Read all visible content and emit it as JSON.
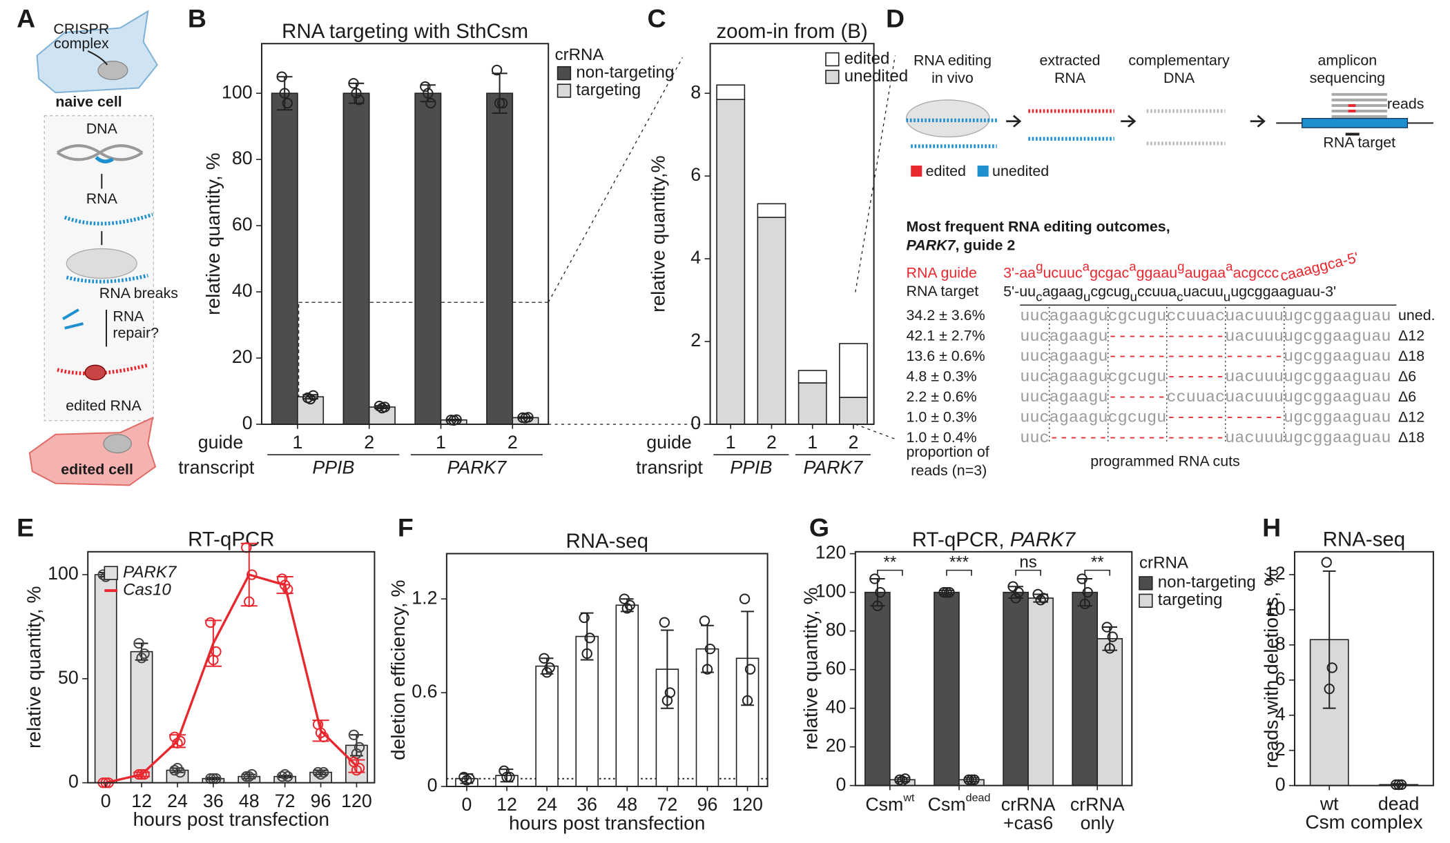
{
  "panel_a": {
    "label": "A",
    "crispr": [
      "CRISPR",
      "complex"
    ],
    "naive": "naive cell",
    "dna": "DNA",
    "rna": "RNA",
    "breaks": "RNA breaks",
    "repair": [
      "RNA",
      "repair?"
    ],
    "edited_rna": "edited RNA",
    "edited_cell": "edited cell"
  },
  "panel_d": {
    "label": "D",
    "steps": [
      [
        "RNA editing",
        "in vivo"
      ],
      [
        "extracted",
        "RNA"
      ],
      [
        "complementary",
        "DNA"
      ],
      [
        "amplicon",
        "sequencing"
      ]
    ],
    "reads_label": "reads",
    "target_label": "RNA target",
    "legend": [
      {
        "name": "edited",
        "color": "#e8272e"
      },
      {
        "name": "unedited",
        "color": "#1e90d0"
      }
    ],
    "heading": [
      "Most frequent RNA editing outcomes,",
      "PARK7",
      ", guide 2"
    ],
    "guide_label": "RNA guide",
    "guide": [
      "3'-aa",
      "g",
      "ucuuc",
      "a",
      "gcgac",
      "a",
      "ggaau",
      "g",
      "augaa",
      "a",
      "acgccc",
      "caaaggca-5'"
    ],
    "target_row_label": "RNA target",
    "target": [
      "5'-uu",
      "c",
      "agaag",
      "u",
      "cgcug",
      "u",
      "ccuua",
      "c",
      "uacuu",
      "u",
      "ugcggaaguau-3'"
    ],
    "rows": [
      {
        "proportion": "34.2 ± 3.6%",
        "sequence": [
          "uucagaagucgcuguccuuacuacuuuugcggaaguau"
        ],
        "outcome": "uned."
      },
      {
        "proportion": "42.1 ± 2.7%",
        "sequence": [
          "uucagaagu",
          "------------",
          "uacuuuugcggaaguau"
        ],
        "outcome": "Δ12"
      },
      {
        "proportion": "13.6 ± 0.6%",
        "sequence": [
          "uucagaagu",
          "------------------",
          "ugcggaaguau"
        ],
        "outcome": "Δ18"
      },
      {
        "proportion": "4.8 ± 0.3%",
        "sequence": [
          "uucagaagucgcugu",
          "------",
          "uacuuuugcggaaguau"
        ],
        "outcome": "Δ6"
      },
      {
        "proportion": "2.2 ± 0.6%",
        "sequence": [
          "uucagaagu",
          "------",
          "ccuuacuacuuuugcggaaguau"
        ],
        "outcome": "Δ6"
      },
      {
        "proportion": "1.0 ± 0.3%",
        "sequence": [
          "uucagaagucgcugu",
          "------------",
          "ugcggaaguau"
        ],
        "outcome": "Δ12"
      },
      {
        "proportion": "1.0 ± 0.4%",
        "sequence": [
          "uuc",
          "------------------",
          "uacuuuugcggaaguau"
        ],
        "outcome": "Δ18"
      }
    ],
    "proportion_label": [
      "proportion of",
      "reads (n=3)"
    ],
    "cuts_label": "programmed RNA cuts"
  },
  "chart_data": [
    {
      "type": "grouped_bar",
      "panel": "B",
      "title": "RNA targeting with SthCsm",
      "y_label": "relative quantity, %",
      "categories": [
        "1",
        "2",
        "1",
        "2"
      ],
      "category_row_label": "guide",
      "groups": [
        "PPIB",
        "PARK7"
      ],
      "group_row_label": "transcript",
      "legend_title": "crRNA",
      "series": [
        {
          "name": "non-targeting",
          "color": "#4d4d4d",
          "values": [
            100,
            100,
            100,
            100
          ],
          "errors": [
            5,
            3,
            2.5,
            6
          ],
          "points": [
            [
              105,
              97,
              100
            ],
            [
              103,
              98,
              100
            ],
            [
              102,
              97,
              100
            ],
            [
              107,
              97,
              97
            ]
          ]
        },
        {
          "name": "targeting",
          "color": "#d9d9d9",
          "values": [
            8.3,
            5.2,
            1.3,
            2.0
          ],
          "errors": [
            0.6,
            0.4,
            0.2,
            0.2
          ],
          "points": [
            [
              8,
              8.7,
              7.6
            ],
            [
              5.5,
              5.2,
              4.9
            ],
            [
              1.3,
              1.4,
              1.2
            ],
            [
              2,
              2.1,
              1.9
            ]
          ]
        }
      ],
      "ylim": [
        0,
        115
      ],
      "yticks": [
        0,
        20,
        40,
        60,
        80,
        100
      ]
    },
    {
      "type": "stacked_bar",
      "panel": "C",
      "title": "zoom-in from (B)",
      "y_label": "relative quantity,%",
      "categories": [
        "1",
        "2",
        "1",
        "2"
      ],
      "category_row_label": "guide",
      "groups": [
        "PPIB",
        "PARK7"
      ],
      "group_row_label": "transript",
      "series": [
        {
          "name": "unedited",
          "color": "#d9d9d9",
          "values": [
            7.85,
            5.0,
            1.0,
            0.65
          ]
        },
        {
          "name": "edited",
          "color": "#ffffff",
          "values": [
            0.35,
            0.33,
            0.3,
            1.3
          ]
        }
      ],
      "ylim": [
        0,
        9.2
      ],
      "yticks": [
        0,
        2,
        4,
        6,
        8
      ]
    },
    {
      "type": "bar_line",
      "panel": "E",
      "title": "RT-qPCR",
      "y_label": "relative quantity, %",
      "x_label": "hours post transfection",
      "categories": [
        "0",
        "12",
        "24",
        "36",
        "48",
        "72",
        "96",
        "120"
      ],
      "legend_italic": true,
      "series": [
        {
          "name": "PARK7",
          "kind": "bar",
          "color": "#e0e0e0",
          "values": [
            100,
            63,
            6,
            2,
            3,
            3,
            5,
            18
          ],
          "errors": [
            1,
            4,
            1,
            0.5,
            1,
            0.5,
            1,
            5
          ],
          "points": [
            [
              100,
              100,
              99
            ],
            [
              67,
              62,
              60
            ],
            [
              6,
              5,
              7
            ],
            [
              2,
              2,
              2
            ],
            [
              3,
              4,
              3
            ],
            [
              3,
              3,
              4
            ],
            [
              5,
              5,
              4
            ],
            [
              23,
              17,
              14
            ]
          ]
        },
        {
          "name": "Cas10",
          "kind": "line",
          "color": "#e8272e",
          "values": [
            0,
            4,
            20,
            67,
            100,
            95,
            25,
            8
          ],
          "errors": [
            0,
            1,
            3,
            11,
            15,
            4,
            5,
            3
          ],
          "points": [
            [
              0,
              0,
              0
            ],
            [
              4,
              4,
              4
            ],
            [
              22,
              20,
              19
            ],
            [
              77,
              63,
              59
            ],
            [
              113,
              100,
              87
            ],
            [
              98,
              93,
              95
            ],
            [
              28,
              22,
              24
            ],
            [
              10,
              7,
              6
            ]
          ]
        }
      ],
      "ylim": [
        0,
        111
      ],
      "yticks": [
        0,
        50,
        100
      ]
    },
    {
      "type": "bar",
      "panel": "F",
      "title": "RNA-seq",
      "y_label": "deletion efficiency, %",
      "x_label": "hours post transfection",
      "categories": [
        "0",
        "12",
        "24",
        "36",
        "48",
        "72",
        "96",
        "120"
      ],
      "color": "#ffffff",
      "values": [
        0.05,
        0.07,
        0.77,
        0.96,
        1.16,
        0.75,
        0.88,
        0.82
      ],
      "errors": [
        0.03,
        0.04,
        0.05,
        0.15,
        0.04,
        0.25,
        0.15,
        0.3
      ],
      "points": [
        [
          0.06,
          0.05,
          0.04
        ],
        [
          0.1,
          0.06,
          0.06
        ],
        [
          0.82,
          0.76,
          0.73
        ],
        [
          1.08,
          0.95,
          0.85
        ],
        [
          1.2,
          1.16,
          1.14
        ],
        [
          1.05,
          0.6,
          0.55
        ],
        [
          1.06,
          0.88,
          0.75
        ],
        [
          1.2,
          0.75,
          0.55
        ]
      ],
      "threshold": 0.05,
      "ylim": [
        0,
        1.49
      ],
      "yticks": [
        0,
        0.6,
        1.2
      ]
    },
    {
      "type": "grouped_bar",
      "panel": "G",
      "title": [
        "RT-qPCR, ",
        "PARK7"
      ],
      "y_label": "relative quantity, %",
      "categories": [
        "Csm",
        "Csm",
        "crRNA",
        "crRNA"
      ],
      "category_suffixes": [
        "wt",
        "dead",
        "+cas6",
        "only"
      ],
      "suffix_superscript": [
        true,
        true,
        false,
        false
      ],
      "legend_title": "crRNA",
      "significance": [
        "**",
        "***",
        "ns",
        "**"
      ],
      "series": [
        {
          "name": "non-targeting",
          "color": "#4d4d4d",
          "values": [
            100,
            100,
            100,
            100
          ],
          "errors": [
            7,
            1,
            3,
            7
          ],
          "points": [
            [
              107,
              100,
              93
            ],
            [
              100,
              100,
              100
            ],
            [
              103,
              100,
              97
            ],
            [
              107,
              100,
              94
            ]
          ]
        },
        {
          "name": "targeting",
          "color": "#d9d9d9",
          "values": [
            3,
            3,
            97,
            76
          ],
          "errors": [
            1,
            1,
            2,
            6
          ],
          "points": [
            [
              3,
              3.5,
              2.5
            ],
            [
              3,
              3,
              3
            ],
            [
              99,
              97,
              96
            ],
            [
              82,
              77,
              71
            ]
          ]
        }
      ],
      "ylim": [
        0,
        121
      ],
      "yticks": [
        0,
        20,
        40,
        60,
        80,
        100,
        120
      ]
    },
    {
      "type": "bar",
      "panel": "H",
      "title": "RNA-seq",
      "y_label": "reads with deletions, %",
      "x_label": "Csm complex",
      "categories": [
        "wt",
        "dead"
      ],
      "color": "#d9d9d9",
      "values": [
        8.3,
        0.05
      ],
      "errors": [
        3.9,
        0.05
      ],
      "points": [
        [
          12.7,
          6.7,
          5.5
        ],
        [
          0.05,
          0.05,
          0.05
        ]
      ],
      "ylim": [
        0,
        13.3
      ],
      "yticks": [
        0,
        2,
        4,
        6,
        8,
        10,
        12
      ]
    }
  ]
}
